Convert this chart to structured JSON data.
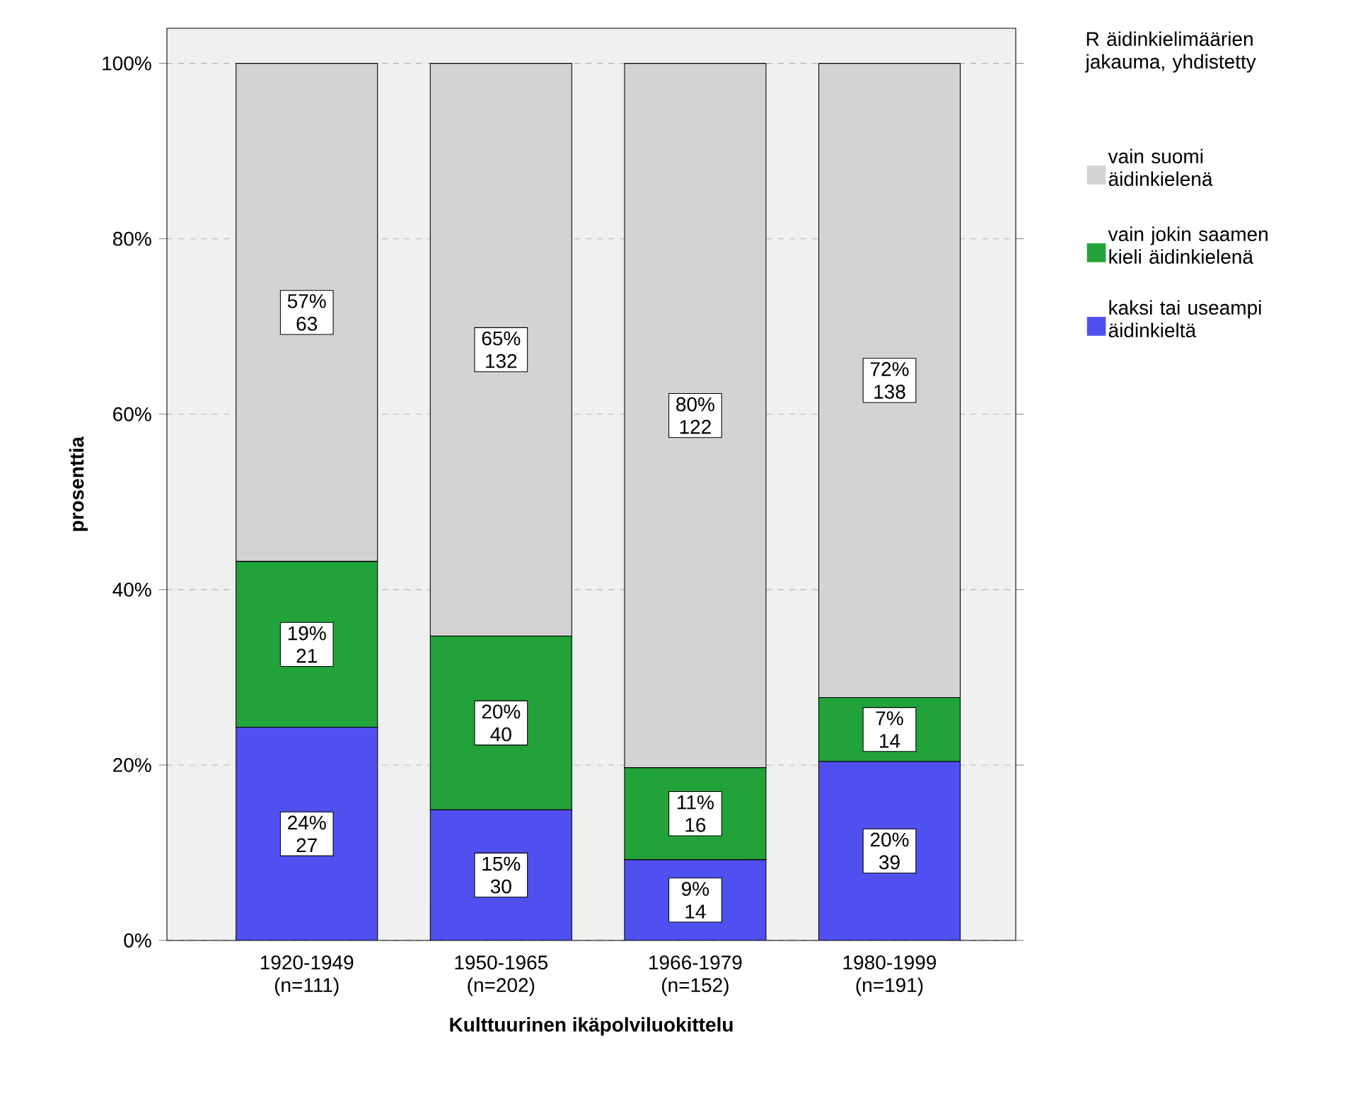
{
  "chart_data": {
    "type": "bar",
    "stacked": true,
    "xlabel": "Kulttuurinen ikäpolviluokittelu",
    "ylabel": "prosenttia",
    "legend_title": "R äidinkielimäärien jakauma, yhdistetty",
    "categories": [
      "1920-1949 (n=111)",
      "1950-1965 (n=202)",
      "1966-1979 (n=152)",
      "1980-1999 (n=191)"
    ],
    "series": [
      {
        "name": "kaksi tai useampi äidinkieltä",
        "color": "#5050f0",
        "values": [
          24.3,
          14.9,
          9.2,
          20.4
        ],
        "value_labels": [
          "24% 27",
          "15% 30",
          "9% 14",
          "20% 39"
        ]
      },
      {
        "name": "vain jokin saamen kieli äidinkielenä",
        "color": "#22a33a",
        "values": [
          18.9,
          19.8,
          10.5,
          7.3
        ],
        "value_labels": [
          "19% 21",
          "20% 40",
          "11% 16",
          "7% 14"
        ]
      },
      {
        "name": "vain suomi äidinkielenä",
        "color": "#d3d3d3",
        "values": [
          56.8,
          65.3,
          80.3,
          72.3
        ],
        "value_labels": [
          "57% 63",
          "65% 132",
          "80% 122",
          "72% 138"
        ]
      }
    ],
    "ylim": [
      0,
      104
    ],
    "yticks": [
      {
        "value": 0,
        "label": "0%"
      },
      {
        "value": 20,
        "label": "20%"
      },
      {
        "value": 40,
        "label": "40%"
      },
      {
        "value": 60,
        "label": "60%"
      },
      {
        "value": 80,
        "label": "80%"
      },
      {
        "value": 100,
        "label": "100%"
      }
    ],
    "grid": "y",
    "legend": "right"
  }
}
